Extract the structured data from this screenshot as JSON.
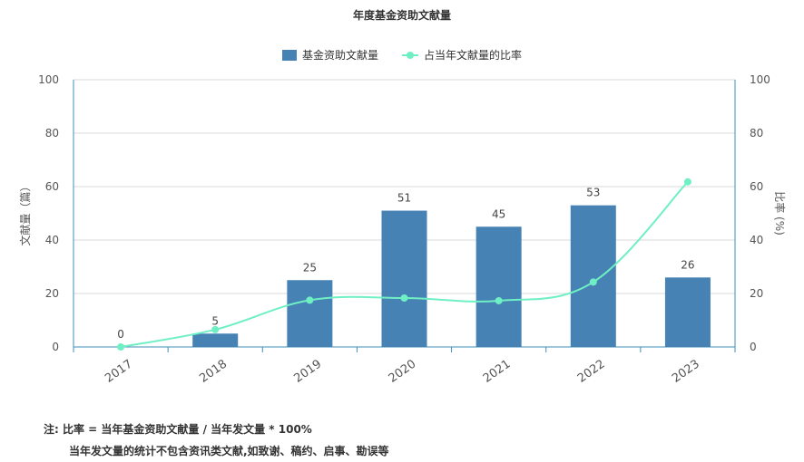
{
  "chart_data": {
    "type": "bar+line",
    "title": "年度基金资助文献量",
    "categories": [
      "2017",
      "2018",
      "2019",
      "2020",
      "2021",
      "2022",
      "2023"
    ],
    "series": [
      {
        "name": "基金资助文献量",
        "type": "bar",
        "axis": "left",
        "color": "#4682b4",
        "values": [
          0,
          5,
          25,
          51,
          45,
          53,
          26
        ]
      },
      {
        "name": "占当年文献量的比率",
        "type": "line",
        "axis": "right",
        "color": "#6ff0c4",
        "values": [
          0,
          6.5,
          17.5,
          18.3,
          17.3,
          24.3,
          61.8
        ]
      }
    ],
    "ylabel_left": "文献量（篇）",
    "ylabel_right": "比率 (%)",
    "ylim_left": [
      0,
      100
    ],
    "ylim_right": [
      0,
      100
    ],
    "yticks_left": [
      0,
      20,
      40,
      60,
      80,
      100
    ],
    "yticks_right": [
      0,
      20,
      40,
      60,
      80,
      100
    ],
    "grid": true,
    "legend_position": "top-center"
  },
  "notes": {
    "line1": "注:  比率 = 当年基金资助文献量 / 当年发文量 * 100%",
    "line2": "当年发文量的统计不包含资讯类文献,如致谢、稿约、启事、勘误等"
  }
}
